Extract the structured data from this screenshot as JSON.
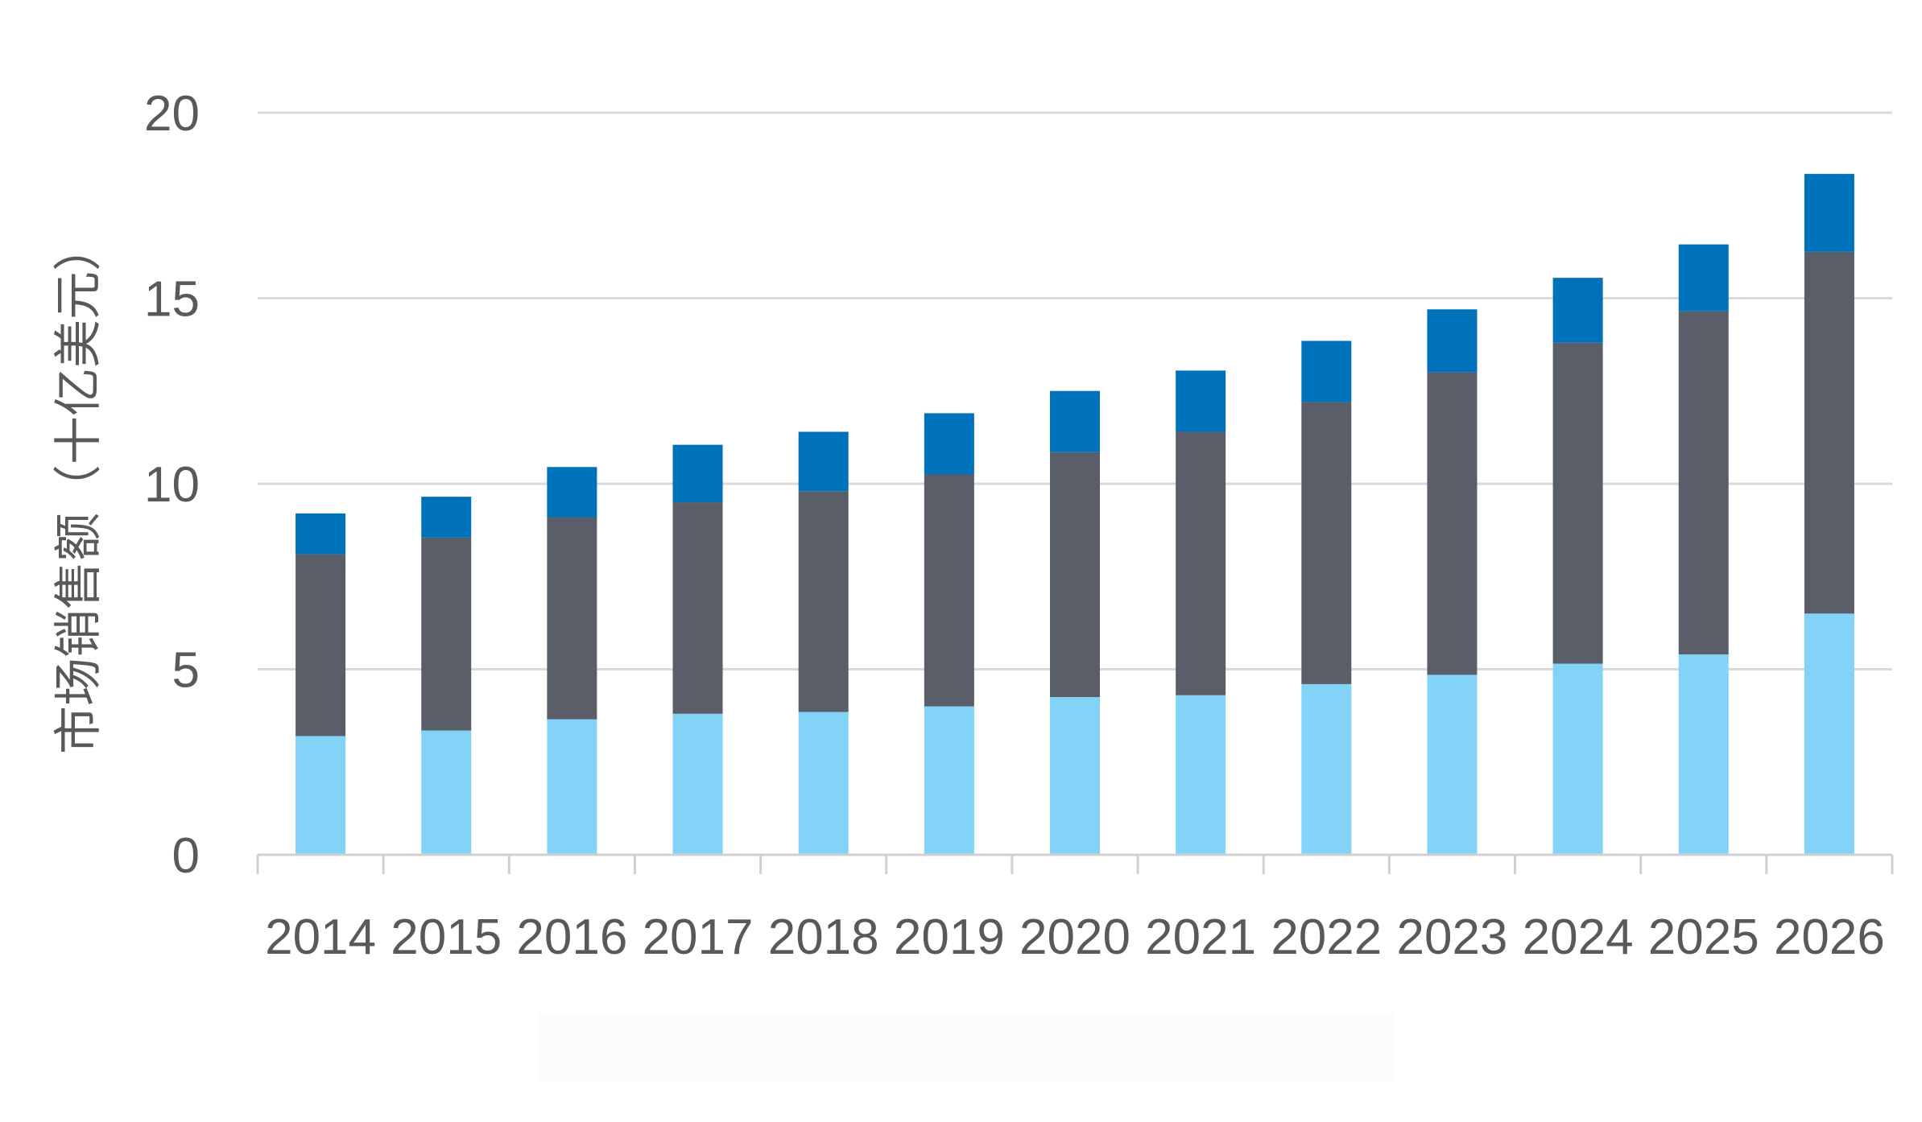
{
  "chart_data": {
    "type": "bar",
    "stacked": true,
    "categories": [
      "2014",
      "2015",
      "2016",
      "2017",
      "2018",
      "2019",
      "2020",
      "2021",
      "2022",
      "2023",
      "2024",
      "2025",
      "2026"
    ],
    "series": [
      {
        "color": "#82d3f7",
        "values": [
          3.2,
          3.35,
          3.65,
          3.8,
          3.85,
          4.0,
          4.25,
          4.3,
          4.6,
          4.85,
          5.15,
          5.4,
          6.5
        ]
      },
      {
        "color": "#595e69",
        "values": [
          4.9,
          5.2,
          5.45,
          5.7,
          5.95,
          6.25,
          6.6,
          7.1,
          7.6,
          8.15,
          8.65,
          9.25,
          9.75
        ]
      },
      {
        "color": "#0072bb",
        "values": [
          1.1,
          1.1,
          1.35,
          1.55,
          1.6,
          1.65,
          1.65,
          1.65,
          1.65,
          1.7,
          1.75,
          1.8,
          2.1
        ]
      }
    ],
    "ylabel": "市场销售额（十亿美元）",
    "xlabel": "",
    "title": "",
    "ylim": [
      0,
      20
    ],
    "yticks": [
      0,
      5,
      10,
      15,
      20
    ],
    "grid": true,
    "gridline_color": "#d9d9d9",
    "legend": "bottom"
  }
}
